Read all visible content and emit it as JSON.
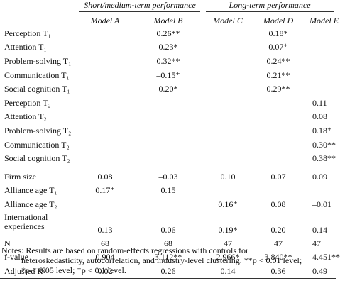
{
  "header": {
    "groups": [
      {
        "label": "Short/medium-term performance"
      },
      {
        "label": "Long-term performance"
      }
    ],
    "models": [
      "Model A",
      "Model B",
      "Model C",
      "Model D",
      "Model E"
    ]
  },
  "rows": [
    {
      "label": "Perception T₁",
      "values": [
        "",
        "0.26**",
        "",
        "0.18*",
        ""
      ]
    },
    {
      "label": "Attention T₁",
      "values": [
        "",
        "0.23*",
        "",
        "0.07⁺",
        ""
      ]
    },
    {
      "label": "Problem-solving T₁",
      "values": [
        "",
        "0.32**",
        "",
        "0.24**",
        ""
      ]
    },
    {
      "label": "Communication T₁",
      "values": [
        "",
        "–0.15⁺",
        "",
        "0.21**",
        ""
      ]
    },
    {
      "label": "Social cognition T₁",
      "values": [
        "",
        "0.20*",
        "",
        "0.29**",
        ""
      ]
    },
    {
      "label": "Perception T₂",
      "values": [
        "",
        "",
        "",
        "",
        "0.11"
      ]
    },
    {
      "label": "Attention T₂",
      "values": [
        "",
        "",
        "",
        "",
        "0.08"
      ]
    },
    {
      "label": "Problem-solving T₂",
      "values": [
        "",
        "",
        "",
        "",
        "0.18⁺"
      ]
    },
    {
      "label": "Communication T₂",
      "values": [
        "",
        "",
        "",
        "",
        "0.30**"
      ]
    },
    {
      "label": "Social cognition T₂",
      "values": [
        "",
        "",
        "",
        "",
        "0.38**"
      ]
    },
    {
      "label": "Firm size",
      "values": [
        "0.08",
        "–0.03",
        "0.10",
        "0.07",
        "0.09"
      ]
    },
    {
      "label": "Alliance age T₁",
      "values": [
        "0.17⁺",
        "0.15",
        "",
        "",
        ""
      ]
    },
    {
      "label": "Alliance age T₂",
      "values": [
        "",
        "",
        "0.16⁺",
        "0.08",
        "–0.01"
      ]
    },
    {
      "label": "International experiences",
      "values": [
        "0.13",
        "0.06",
        "0.19*",
        "0.20",
        "0.14"
      ]
    },
    {
      "label": "N",
      "values": [
        "68",
        "68",
        "47",
        "47",
        "47"
      ]
    },
    {
      "label": "f-value",
      "values": [
        "0.904",
        "3.112**",
        "2.966*",
        "3.840**",
        "4.451**"
      ]
    },
    {
      "label": "Adjusted R²",
      "values": [
        "0.02",
        "0.26",
        "0.14",
        "0.36",
        "0.49"
      ]
    }
  ],
  "notes": {
    "line1": "Notes: Results are based on random-effects regressions with controls for",
    "line2": "heteroskedasticity, autocorrelation, and industry-level clustering. **p < 0.01 level;",
    "line3": "*p < 0.05 level; ⁺p < 0.1 level."
  }
}
